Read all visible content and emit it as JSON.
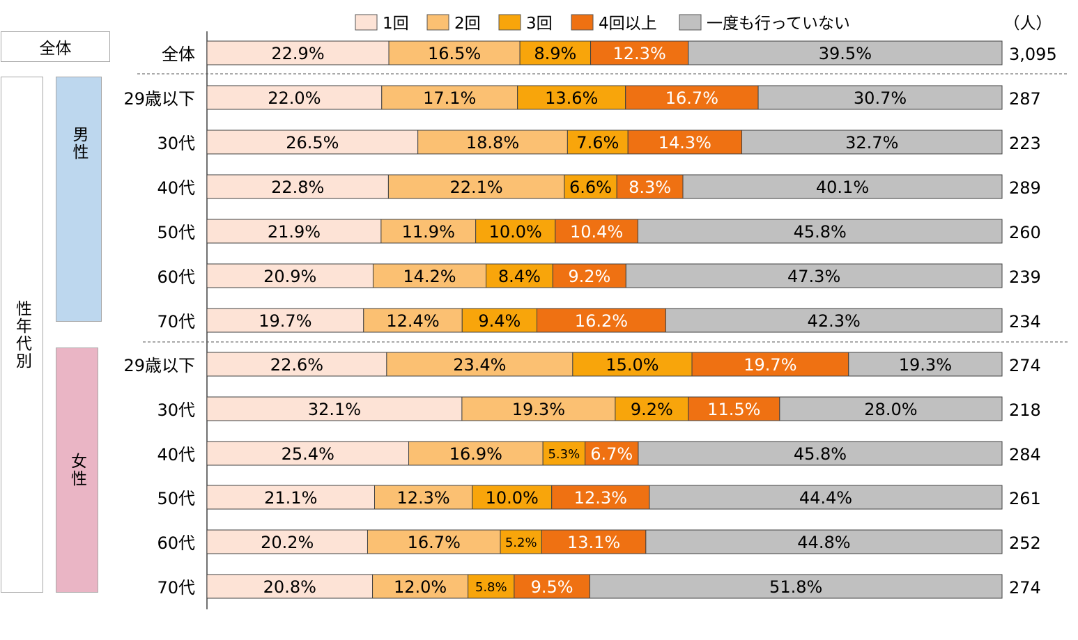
{
  "chart_data": {
    "type": "bar",
    "orientation": "horizontal",
    "stacked": true,
    "unit": "%",
    "count_unit_label": "（人）",
    "legend_position": "top",
    "series": [
      {
        "name": "1回",
        "color": "#FDE3D6"
      },
      {
        "name": "2回",
        "color": "#FBC072"
      },
      {
        "name": "3回",
        "color": "#F8A50B"
      },
      {
        "name": "4回以上",
        "color": "#EF7112"
      },
      {
        "name": "一度も行っていない",
        "color": "#C0C0C0"
      }
    ],
    "groups": {
      "total": "全体",
      "section": "性年代別",
      "male": "男性",
      "female": "女性"
    },
    "rows": [
      {
        "group": "total",
        "label": "全体",
        "values": [
          22.9,
          16.5,
          8.9,
          12.3,
          39.5
        ],
        "n": "3,095"
      },
      {
        "group": "male",
        "label": "29歳以下",
        "values": [
          22.0,
          17.1,
          13.6,
          16.7,
          30.7
        ],
        "n": "287"
      },
      {
        "group": "male",
        "label": "30代",
        "values": [
          26.5,
          18.8,
          7.6,
          14.3,
          32.7
        ],
        "n": "223"
      },
      {
        "group": "male",
        "label": "40代",
        "values": [
          22.8,
          22.1,
          6.6,
          8.3,
          40.1
        ],
        "n": "289"
      },
      {
        "group": "male",
        "label": "50代",
        "values": [
          21.9,
          11.9,
          10.0,
          10.4,
          45.8
        ],
        "n": "260"
      },
      {
        "group": "male",
        "label": "60代",
        "values": [
          20.9,
          14.2,
          8.4,
          9.2,
          47.3
        ],
        "n": "239"
      },
      {
        "group": "male",
        "label": "70代",
        "values": [
          19.7,
          12.4,
          9.4,
          16.2,
          42.3
        ],
        "n": "234"
      },
      {
        "group": "female",
        "label": "29歳以下",
        "values": [
          22.6,
          23.4,
          15.0,
          19.7,
          19.3
        ],
        "n": "274"
      },
      {
        "group": "female",
        "label": "30代",
        "values": [
          32.1,
          19.3,
          9.2,
          11.5,
          28.0
        ],
        "n": "218"
      },
      {
        "group": "female",
        "label": "40代",
        "values": [
          25.4,
          16.9,
          5.3,
          6.7,
          45.8
        ],
        "n": "284"
      },
      {
        "group": "female",
        "label": "50代",
        "values": [
          21.1,
          12.3,
          10.0,
          12.3,
          44.4
        ],
        "n": "261"
      },
      {
        "group": "female",
        "label": "60代",
        "values": [
          20.2,
          16.7,
          5.2,
          13.1,
          44.8
        ],
        "n": "252"
      },
      {
        "group": "female",
        "label": "70代",
        "values": [
          20.8,
          12.0,
          5.8,
          9.5,
          51.8
        ],
        "n": "274"
      }
    ],
    "xlim": [
      0,
      100
    ],
    "grid": false
  }
}
